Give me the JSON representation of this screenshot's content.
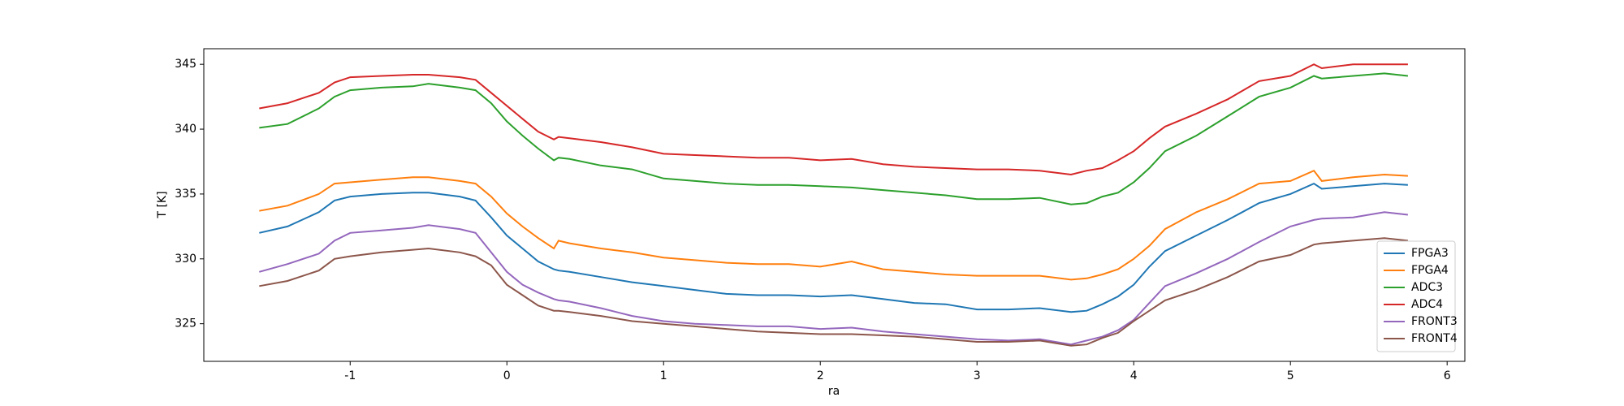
{
  "chart_data": {
    "type": "line",
    "xlabel": "ra",
    "ylabel": "T [K]",
    "x": [
      -1.58,
      -1.4,
      -1.2,
      -1.1,
      -1.0,
      -0.8,
      -0.6,
      -0.5,
      -0.3,
      -0.2,
      -0.1,
      0,
      0.1,
      0.2,
      0.3,
      0.33,
      0.4,
      0.6,
      0.8,
      1.0,
      1.2,
      1.4,
      1.6,
      1.8,
      2.0,
      2.2,
      2.4,
      2.6,
      2.8,
      3.0,
      3.2,
      3.4,
      3.6,
      3.7,
      3.8,
      3.9,
      4.0,
      4.1,
      4.2,
      4.4,
      4.6,
      4.8,
      5.0,
      5.15,
      5.2,
      5.4,
      5.6,
      5.75
    ],
    "series": [
      {
        "name": "FPGA3",
        "color": "#1f77b4",
        "values": [
          332.0,
          332.5,
          333.6,
          334.5,
          334.8,
          335.0,
          335.1,
          335.1,
          334.8,
          334.5,
          333.2,
          331.8,
          330.8,
          329.8,
          329.2,
          329.1,
          329.0,
          328.6,
          328.2,
          327.9,
          327.6,
          327.3,
          327.2,
          327.2,
          327.1,
          327.2,
          326.9,
          326.6,
          326.5,
          326.1,
          326.1,
          326.2,
          325.9,
          326.0,
          326.5,
          327.1,
          328.0,
          329.4,
          330.6,
          331.8,
          333.0,
          334.3,
          335.0,
          335.8,
          335.4,
          335.6,
          335.8,
          335.7
        ]
      },
      {
        "name": "FPGA4",
        "color": "#ff7f0e",
        "values": [
          333.7,
          334.1,
          335.0,
          335.8,
          335.9,
          336.1,
          336.3,
          336.3,
          336.0,
          335.8,
          334.8,
          333.5,
          332.5,
          331.6,
          330.8,
          331.4,
          331.2,
          330.8,
          330.5,
          330.1,
          329.9,
          329.7,
          329.6,
          329.6,
          329.4,
          329.8,
          329.2,
          329.0,
          328.8,
          328.7,
          328.7,
          328.7,
          328.4,
          328.5,
          328.8,
          329.2,
          330.0,
          331.0,
          332.3,
          333.6,
          334.6,
          335.8,
          336.0,
          336.8,
          336.0,
          336.3,
          336.5,
          336.4
        ]
      },
      {
        "name": "ADC3",
        "color": "#2ca02c",
        "values": [
          340.1,
          340.4,
          341.6,
          342.5,
          343.0,
          343.2,
          343.3,
          343.5,
          343.2,
          343.0,
          342.0,
          340.6,
          339.5,
          338.5,
          337.6,
          337.8,
          337.7,
          337.2,
          336.9,
          336.2,
          336.0,
          335.8,
          335.7,
          335.7,
          335.6,
          335.5,
          335.3,
          335.1,
          334.9,
          334.6,
          334.6,
          334.7,
          334.2,
          334.3,
          334.8,
          335.1,
          335.9,
          337.0,
          338.3,
          339.5,
          341.0,
          342.5,
          343.2,
          344.1,
          343.9,
          344.1,
          344.3,
          344.1
        ]
      },
      {
        "name": "ADC4",
        "color": "#d62728",
        "values": [
          341.6,
          342.0,
          342.8,
          343.6,
          344.0,
          344.1,
          344.2,
          344.2,
          344.0,
          343.8,
          342.8,
          341.8,
          340.8,
          339.8,
          339.2,
          339.4,
          339.3,
          339.0,
          338.6,
          338.1,
          338.0,
          337.9,
          337.8,
          337.8,
          337.6,
          337.7,
          337.3,
          337.1,
          337.0,
          336.9,
          336.9,
          336.8,
          336.5,
          336.8,
          337.0,
          337.6,
          338.3,
          339.3,
          340.2,
          341.2,
          342.3,
          343.7,
          344.1,
          345.0,
          344.7,
          345.0,
          345.0,
          345.0
        ]
      },
      {
        "name": "FRONT3",
        "color": "#9467bd",
        "values": [
          329.0,
          329.6,
          330.4,
          331.4,
          332.0,
          332.2,
          332.4,
          332.6,
          332.3,
          332.0,
          330.5,
          329.0,
          328.0,
          327.4,
          326.9,
          326.8,
          326.7,
          326.2,
          325.6,
          325.2,
          325.0,
          324.9,
          324.8,
          324.8,
          324.6,
          324.7,
          324.4,
          324.2,
          324.0,
          323.8,
          323.7,
          323.8,
          323.4,
          323.7,
          324.0,
          324.5,
          325.3,
          326.6,
          327.9,
          328.9,
          330.0,
          331.3,
          332.5,
          333.0,
          333.1,
          333.2,
          333.6,
          333.4
        ]
      },
      {
        "name": "FRONT4",
        "color": "#8c564b",
        "values": [
          327.9,
          328.3,
          329.1,
          330.0,
          330.2,
          330.5,
          330.7,
          330.8,
          330.5,
          330.2,
          329.5,
          328.0,
          327.2,
          326.4,
          326.0,
          326.0,
          325.9,
          325.6,
          325.2,
          325.0,
          324.8,
          324.6,
          324.4,
          324.3,
          324.2,
          324.2,
          324.1,
          324.0,
          323.8,
          323.6,
          323.6,
          323.7,
          323.3,
          323.4,
          323.9,
          324.3,
          325.2,
          326.0,
          326.8,
          327.6,
          328.6,
          329.8,
          330.3,
          331.1,
          331.2,
          331.4,
          331.6,
          331.4
        ]
      }
    ],
    "xlim": [
      -1.934,
      6.113
    ],
    "xticks": [
      -1,
      0,
      1,
      2,
      3,
      4,
      5,
      6
    ],
    "ylim": [
      322.1,
      346.2
    ],
    "yticks": [
      325,
      330,
      335,
      340,
      345
    ],
    "legend": "lower right"
  }
}
